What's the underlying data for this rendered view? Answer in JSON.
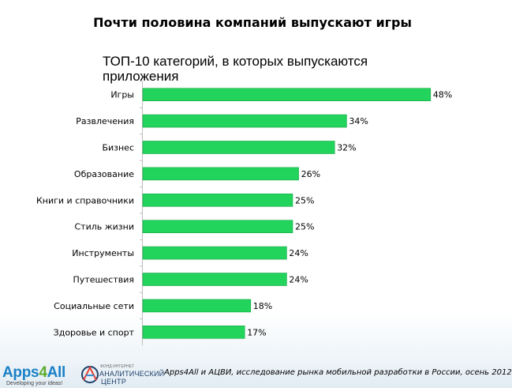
{
  "slide_title": "Почти половина компаний выпускают игры",
  "chart_data": {
    "type": "bar",
    "orientation": "horizontal",
    "title": "ТОП-10 категорий, в которых выпускаются приложения",
    "xlabel": "",
    "ylabel": "",
    "xlim": [
      0,
      50
    ],
    "grid": false,
    "legend": "none",
    "bar_color": "#22d45c",
    "categories": [
      "Игры",
      "Развлечения",
      "Бизнес",
      "Образование",
      "Книги и справочники",
      "Стиль жизни",
      "Инструменты",
      "Путешествия",
      "Социальные сети",
      "Здоровье и спорт"
    ],
    "values": [
      48,
      34,
      32,
      26,
      25,
      25,
      24,
      24,
      18,
      17
    ],
    "value_labels": [
      "48%",
      "34%",
      "32%",
      "26%",
      "25%",
      "25%",
      "24%",
      "24%",
      "18%",
      "17%"
    ]
  },
  "footer": {
    "logo_apps": {
      "part1": "Apps",
      "part2": "4",
      "part3": "All"
    },
    "slogan": "Developing your ideas!",
    "logo_acvi": {
      "small": "ФОНД ИНТЕРНЕТ",
      "line1": "АНАЛИТИЧЕСКИЙ",
      "line2": "ЦЕНТР"
    },
    "source": "Apps4All и АЦВИ, исследование рынка мобильной разработки в России, осень 2012"
  },
  "colors": {
    "bar": "#22d45c",
    "bar_edge": "#1aa648",
    "apps_blue": "#1a80c6",
    "apps_green": "#5cab2c",
    "acvi_navy": "#1d3f6b"
  }
}
